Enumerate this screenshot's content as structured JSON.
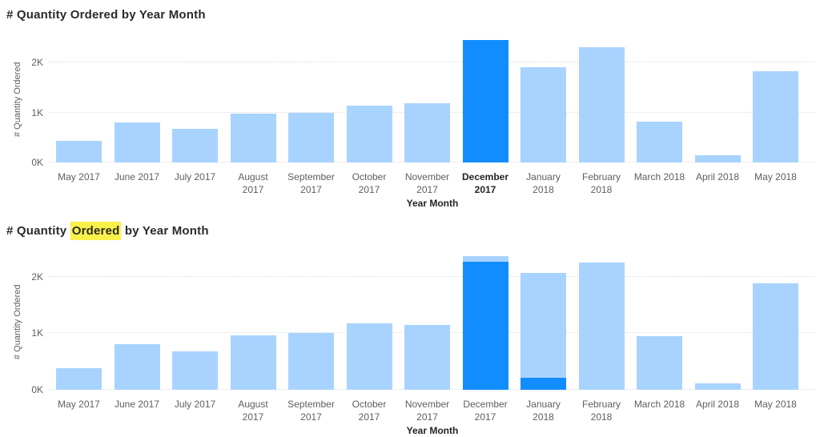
{
  "palette": {
    "highlight_blue": "#118DFF",
    "base_blue": "#A8D3FF",
    "title_color": "#2B2A29",
    "label_color": "#605E5C",
    "bold_label_color": "#252423",
    "gridline_color": "#DEDEDE",
    "text_highlight_yellow": "#FAF04A",
    "background": "#FFFFFF"
  },
  "chart_data": [
    {
      "type": "bar",
      "title": "# Quantity Ordered by Year Month",
      "title_parts": [
        {
          "text": "# Quantity Ordered by Year Month",
          "highlighted": false
        }
      ],
      "x_axis_title": "Year Month",
      "y_axis_title": "# Quantity Ordered",
      "y_max": 2530,
      "y_ticks": [
        {
          "label": "0K",
          "value": 0
        },
        {
          "label": "1K",
          "value": 1000
        },
        {
          "label": "2K",
          "value": 2000
        }
      ],
      "grid": "dotted-horizontal",
      "legend": "none",
      "categories": [
        {
          "label": "May 2017",
          "label_lines": [
            "May 2017"
          ],
          "bold": false,
          "segments": [
            {
              "name": "default",
              "value": 430,
              "color": "base_blue"
            }
          ]
        },
        {
          "label": "June 2017",
          "label_lines": [
            "June 2017"
          ],
          "bold": false,
          "segments": [
            {
              "name": "default",
              "value": 800,
              "color": "base_blue"
            }
          ]
        },
        {
          "label": "July 2017",
          "label_lines": [
            "July 2017"
          ],
          "bold": false,
          "segments": [
            {
              "name": "default",
              "value": 670,
              "color": "base_blue"
            }
          ]
        },
        {
          "label": "August 2017",
          "label_lines": [
            "August",
            "2017"
          ],
          "bold": false,
          "segments": [
            {
              "name": "default",
              "value": 970,
              "color": "base_blue"
            }
          ]
        },
        {
          "label": "September 2017",
          "label_lines": [
            "September",
            "2017"
          ],
          "bold": false,
          "segments": [
            {
              "name": "default",
              "value": 1000,
              "color": "base_blue"
            }
          ]
        },
        {
          "label": "October 2017",
          "label_lines": [
            "October",
            "2017"
          ],
          "bold": false,
          "segments": [
            {
              "name": "default",
              "value": 1130,
              "color": "base_blue"
            }
          ]
        },
        {
          "label": "November 2017",
          "label_lines": [
            "November",
            "2017"
          ],
          "bold": false,
          "segments": [
            {
              "name": "default",
              "value": 1180,
              "color": "base_blue"
            }
          ]
        },
        {
          "label": "December 2017",
          "label_lines": [
            "December",
            "2017"
          ],
          "bold": true,
          "segments": [
            {
              "name": "selected",
              "value": 2450,
              "color": "highlight_blue"
            }
          ]
        },
        {
          "label": "January 2018",
          "label_lines": [
            "January",
            "2018"
          ],
          "bold": false,
          "segments": [
            {
              "name": "default",
              "value": 1900,
              "color": "base_blue"
            }
          ]
        },
        {
          "label": "February 2018",
          "label_lines": [
            "February",
            "2018"
          ],
          "bold": false,
          "segments": [
            {
              "name": "default",
              "value": 2300,
              "color": "base_blue"
            }
          ]
        },
        {
          "label": "March 2018",
          "label_lines": [
            "March 2018"
          ],
          "bold": false,
          "segments": [
            {
              "name": "default",
              "value": 820,
              "color": "base_blue"
            }
          ]
        },
        {
          "label": "April 2018",
          "label_lines": [
            "April 2018"
          ],
          "bold": false,
          "segments": [
            {
              "name": "default",
              "value": 140,
              "color": "base_blue"
            }
          ]
        },
        {
          "label": "May 2018",
          "label_lines": [
            "May 2018"
          ],
          "bold": false,
          "segments": [
            {
              "name": "default",
              "value": 1820,
              "color": "base_blue"
            }
          ]
        }
      ]
    },
    {
      "type": "bar",
      "title": "# Quantity Ordered by Year Month",
      "title_parts": [
        {
          "text": "# Quantity ",
          "highlighted": false
        },
        {
          "text": "Ordered",
          "highlighted": true
        },
        {
          "text": " by Year Month",
          "highlighted": false
        }
      ],
      "x_axis_title": "Year Month",
      "y_axis_title": "# Quantity Ordered",
      "y_max": 2410,
      "y_ticks": [
        {
          "label": "0K",
          "value": 0
        },
        {
          "label": "1K",
          "value": 1000
        },
        {
          "label": "2K",
          "value": 2000
        }
      ],
      "grid": "dotted-horizontal",
      "legend": "none",
      "categories": [
        {
          "label": "May 2017",
          "label_lines": [
            "May 2017"
          ],
          "bold": false,
          "segments": [
            {
              "name": "default",
              "value": 380,
              "color": "base_blue"
            }
          ]
        },
        {
          "label": "June 2017",
          "label_lines": [
            "June 2017"
          ],
          "bold": false,
          "segments": [
            {
              "name": "default",
              "value": 810,
              "color": "base_blue"
            }
          ]
        },
        {
          "label": "July 2017",
          "label_lines": [
            "July 2017"
          ],
          "bold": false,
          "segments": [
            {
              "name": "default",
              "value": 680,
              "color": "base_blue"
            }
          ]
        },
        {
          "label": "August 2017",
          "label_lines": [
            "August",
            "2017"
          ],
          "bold": false,
          "segments": [
            {
              "name": "default",
              "value": 970,
              "color": "base_blue"
            }
          ]
        },
        {
          "label": "September 2017",
          "label_lines": [
            "September",
            "2017"
          ],
          "bold": false,
          "segments": [
            {
              "name": "default",
              "value": 1000,
              "color": "base_blue"
            }
          ]
        },
        {
          "label": "October 2017",
          "label_lines": [
            "October",
            "2017"
          ],
          "bold": false,
          "segments": [
            {
              "name": "default",
              "value": 1180,
              "color": "base_blue"
            }
          ]
        },
        {
          "label": "November 2017",
          "label_lines": [
            "November",
            "2017"
          ],
          "bold": false,
          "segments": [
            {
              "name": "default",
              "value": 1150,
              "color": "base_blue"
            }
          ]
        },
        {
          "label": "December 2017",
          "label_lines": [
            "December",
            "2017"
          ],
          "bold": false,
          "segments": [
            {
              "name": "highlighted",
              "value": 2270,
              "color": "highlight_blue"
            },
            {
              "name": "dimmed",
              "value": 100,
              "color": "base_blue"
            }
          ]
        },
        {
          "label": "January 2018",
          "label_lines": [
            "January",
            "2018"
          ],
          "bold": false,
          "segments": [
            {
              "name": "highlighted",
              "value": 210,
              "color": "highlight_blue"
            },
            {
              "name": "dimmed",
              "value": 1860,
              "color": "base_blue"
            }
          ]
        },
        {
          "label": "February 2018",
          "label_lines": [
            "February",
            "2018"
          ],
          "bold": false,
          "segments": [
            {
              "name": "default",
              "value": 2260,
              "color": "base_blue"
            }
          ]
        },
        {
          "label": "March 2018",
          "label_lines": [
            "March 2018"
          ],
          "bold": false,
          "segments": [
            {
              "name": "default",
              "value": 950,
              "color": "base_blue"
            }
          ]
        },
        {
          "label": "April 2018",
          "label_lines": [
            "April 2018"
          ],
          "bold": false,
          "segments": [
            {
              "name": "default",
              "value": 110,
              "color": "base_blue"
            }
          ]
        },
        {
          "label": "May 2018",
          "label_lines": [
            "May 2018"
          ],
          "bold": false,
          "segments": [
            {
              "name": "default",
              "value": 1890,
              "color": "base_blue"
            }
          ]
        }
      ]
    }
  ]
}
